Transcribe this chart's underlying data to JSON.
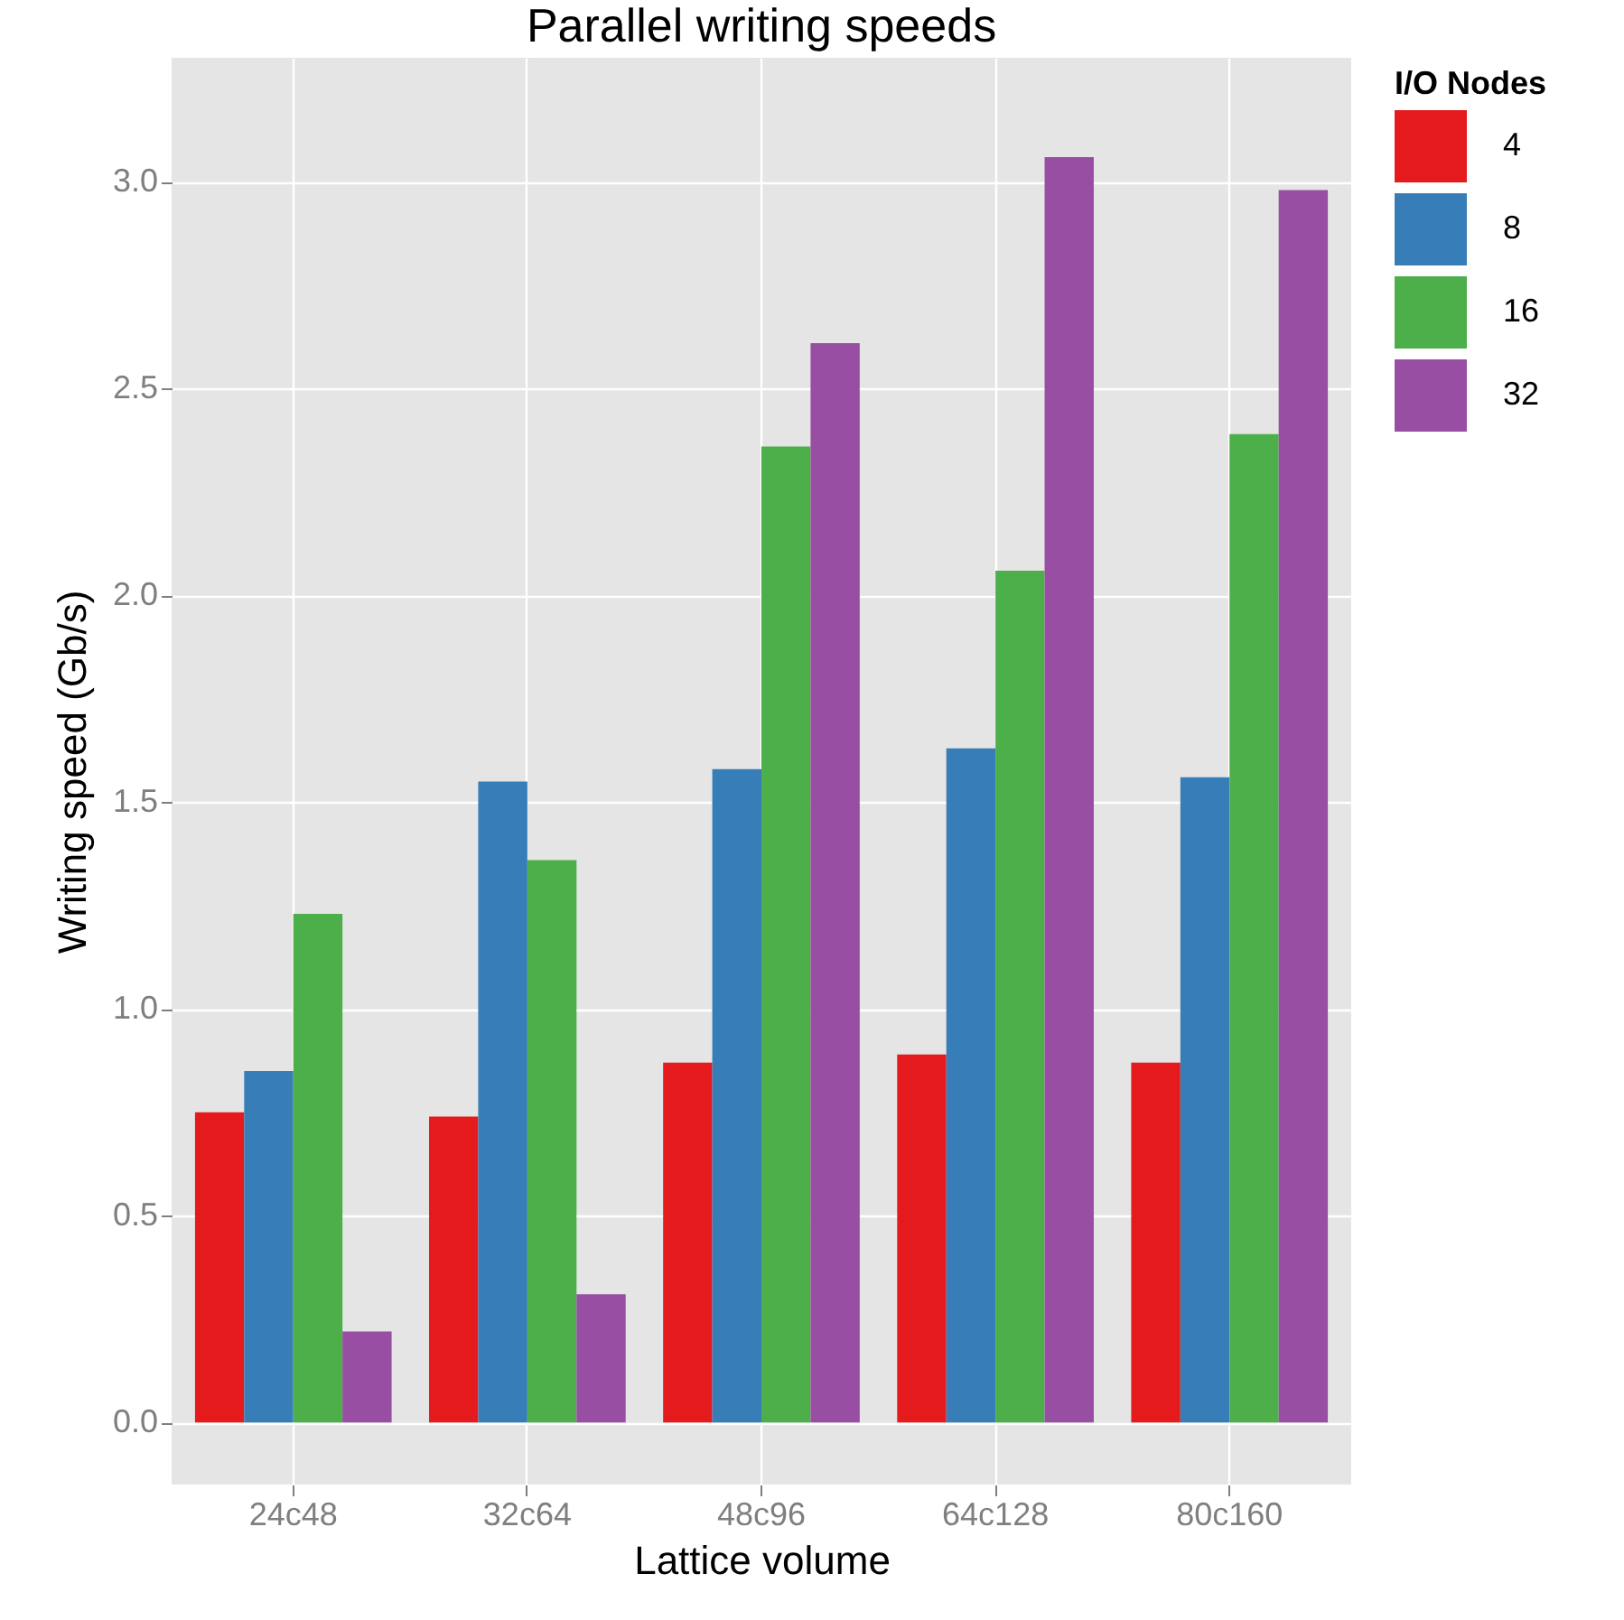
{
  "chart_data": {
    "type": "bar",
    "title": "Parallel writing speeds",
    "xlabel": "Lattice volume",
    "ylabel": "Writing speed (Gb/s)",
    "legend_title": "I/O Nodes",
    "categories": [
      "24c48",
      "32c64",
      "48c96",
      "64c128",
      "80c160"
    ],
    "series": [
      {
        "name": "4",
        "color": "#e41a1c",
        "values": [
          0.75,
          0.74,
          0.87,
          0.89,
          0.87
        ]
      },
      {
        "name": "8",
        "color": "#377eb8",
        "values": [
          0.85,
          1.55,
          1.58,
          1.63,
          1.56
        ]
      },
      {
        "name": "16",
        "color": "#4daf4a",
        "values": [
          1.23,
          1.36,
          2.36,
          2.06,
          2.39
        ]
      },
      {
        "name": "32",
        "color": "#984ea3",
        "values": [
          0.22,
          0.31,
          2.61,
          3.06,
          2.98
        ]
      }
    ],
    "ylim": [
      -0.15,
      3.3
    ],
    "yticks": [
      {
        "value": 0,
        "label": "0.0"
      },
      0.5,
      {
        "value": 1,
        "label": "1.0"
      },
      1.5,
      {
        "value": 2,
        "label": "2.0"
      },
      2.5,
      {
        "value": 3,
        "label": "3.0"
      }
    ],
    "grid": true,
    "legend": "right"
  }
}
